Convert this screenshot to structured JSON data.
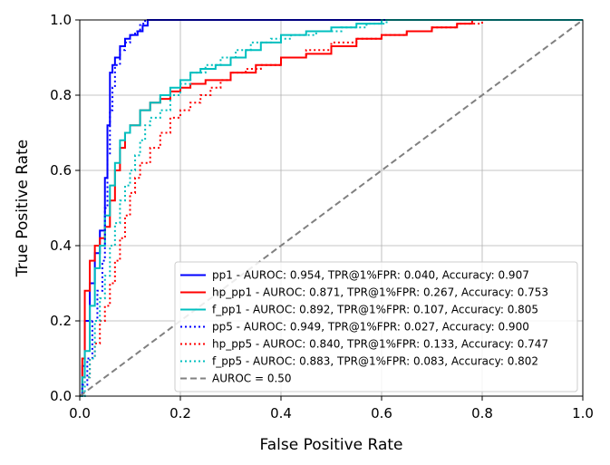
{
  "chart_data": {
    "type": "line",
    "title": "",
    "xlabel": "False Positive Rate",
    "ylabel": "True Positive Rate",
    "xlim": [
      0.0,
      1.0
    ],
    "ylim": [
      0.0,
      1.0
    ],
    "xticks": [
      "0.0",
      "0.2",
      "0.4",
      "0.6",
      "0.8",
      "1.0"
    ],
    "yticks": [
      "0.0",
      "0.2",
      "0.4",
      "0.6",
      "0.8",
      "1.0"
    ],
    "grid": true,
    "legend_position": "lower-right",
    "series": [
      {
        "name": "pp1 - AUROC: 0.954, TPR@1%FPR: 0.040, Accuracy: 0.907",
        "color": "#0000ff",
        "style": "solid",
        "x": [
          0.0,
          0.005,
          0.005,
          0.01,
          0.01,
          0.02,
          0.02,
          0.03,
          0.03,
          0.04,
          0.04,
          0.05,
          0.05,
          0.055,
          0.055,
          0.06,
          0.06,
          0.065,
          0.065,
          0.07,
          0.07,
          0.08,
          0.08,
          0.09,
          0.09,
          0.1,
          0.1,
          0.115,
          0.115,
          0.125,
          0.125,
          0.135,
          0.135,
          0.145,
          0.145,
          1.0
        ],
        "y": [
          0.0,
          0.0,
          0.08,
          0.08,
          0.2,
          0.2,
          0.3,
          0.3,
          0.38,
          0.38,
          0.44,
          0.44,
          0.58,
          0.58,
          0.72,
          0.72,
          0.86,
          0.86,
          0.88,
          0.88,
          0.9,
          0.9,
          0.93,
          0.93,
          0.95,
          0.95,
          0.96,
          0.96,
          0.97,
          0.97,
          0.985,
          0.985,
          1.0,
          1.0,
          1.0,
          1.0
        ]
      },
      {
        "name": "hp_pp1 - AUROC: 0.871, TPR@1%FPR: 0.267, Accuracy: 0.753",
        "color": "#ff0000",
        "style": "solid",
        "x": [
          0.0,
          0.005,
          0.005,
          0.01,
          0.01,
          0.02,
          0.02,
          0.03,
          0.03,
          0.04,
          0.04,
          0.05,
          0.05,
          0.06,
          0.06,
          0.07,
          0.07,
          0.08,
          0.08,
          0.09,
          0.09,
          0.1,
          0.1,
          0.12,
          0.12,
          0.14,
          0.14,
          0.16,
          0.16,
          0.18,
          0.18,
          0.2,
          0.2,
          0.22,
          0.22,
          0.25,
          0.25,
          0.3,
          0.3,
          0.35,
          0.35,
          0.4,
          0.4,
          0.45,
          0.45,
          0.5,
          0.5,
          0.55,
          0.55,
          0.6,
          0.6,
          0.65,
          0.65,
          0.7,
          0.7,
          0.75,
          0.75,
          0.78,
          0.78,
          0.79,
          0.79,
          1.0
        ],
        "y": [
          0.0,
          0.0,
          0.1,
          0.1,
          0.28,
          0.28,
          0.36,
          0.36,
          0.4,
          0.4,
          0.42,
          0.42,
          0.45,
          0.45,
          0.52,
          0.52,
          0.6,
          0.6,
          0.66,
          0.66,
          0.7,
          0.7,
          0.72,
          0.72,
          0.76,
          0.76,
          0.78,
          0.78,
          0.79,
          0.79,
          0.81,
          0.81,
          0.82,
          0.82,
          0.83,
          0.83,
          0.84,
          0.84,
          0.86,
          0.86,
          0.88,
          0.88,
          0.9,
          0.9,
          0.91,
          0.91,
          0.93,
          0.93,
          0.95,
          0.95,
          0.96,
          0.96,
          0.97,
          0.97,
          0.98,
          0.98,
          0.99,
          0.99,
          1.0,
          1.0,
          1.0,
          1.0
        ]
      },
      {
        "name": "f_pp1 - AUROC: 0.892, TPR@1%FPR: 0.107, Accuracy: 0.805",
        "color": "#00bfbf",
        "style": "solid",
        "x": [
          0.0,
          0.005,
          0.005,
          0.01,
          0.01,
          0.02,
          0.02,
          0.03,
          0.03,
          0.04,
          0.04,
          0.05,
          0.05,
          0.06,
          0.06,
          0.07,
          0.07,
          0.08,
          0.08,
          0.09,
          0.09,
          0.1,
          0.1,
          0.12,
          0.12,
          0.14,
          0.14,
          0.16,
          0.16,
          0.18,
          0.18,
          0.2,
          0.2,
          0.22,
          0.22,
          0.24,
          0.24,
          0.27,
          0.27,
          0.3,
          0.3,
          0.33,
          0.33,
          0.36,
          0.36,
          0.4,
          0.4,
          0.45,
          0.45,
          0.5,
          0.5,
          0.55,
          0.55,
          0.6,
          0.6,
          0.62,
          0.62,
          1.0
        ],
        "y": [
          0.0,
          0.0,
          0.05,
          0.05,
          0.12,
          0.12,
          0.24,
          0.24,
          0.34,
          0.34,
          0.4,
          0.4,
          0.48,
          0.48,
          0.56,
          0.56,
          0.62,
          0.62,
          0.68,
          0.68,
          0.7,
          0.7,
          0.72,
          0.72,
          0.76,
          0.76,
          0.78,
          0.78,
          0.8,
          0.8,
          0.82,
          0.82,
          0.84,
          0.84,
          0.86,
          0.86,
          0.87,
          0.87,
          0.88,
          0.88,
          0.9,
          0.9,
          0.92,
          0.92,
          0.94,
          0.94,
          0.96,
          0.96,
          0.97,
          0.97,
          0.98,
          0.98,
          0.99,
          0.99,
          1.0,
          1.0,
          1.0,
          1.0
        ]
      },
      {
        "name": "pp5 - AUROC: 0.949, TPR@1%FPR: 0.027, Accuracy: 0.900",
        "color": "#0000ff",
        "style": "dotted",
        "x": [
          0.0,
          0.005,
          0.005,
          0.015,
          0.015,
          0.025,
          0.025,
          0.035,
          0.035,
          0.045,
          0.045,
          0.05,
          0.05,
          0.055,
          0.055,
          0.06,
          0.06,
          0.065,
          0.065,
          0.07,
          0.07,
          0.08,
          0.08,
          0.09,
          0.09,
          0.1,
          0.1,
          0.11,
          0.11,
          0.12,
          0.12,
          0.13,
          0.13,
          1.0
        ],
        "y": [
          0.0,
          0.0,
          0.03,
          0.03,
          0.1,
          0.1,
          0.2,
          0.2,
          0.28,
          0.28,
          0.36,
          0.36,
          0.5,
          0.5,
          0.64,
          0.64,
          0.76,
          0.76,
          0.82,
          0.82,
          0.88,
          0.88,
          0.92,
          0.92,
          0.94,
          0.94,
          0.96,
          0.96,
          0.97,
          0.97,
          0.99,
          0.99,
          1.0,
          1.0
        ]
      },
      {
        "name": "hp_pp5 - AUROC: 0.840, TPR@1%FPR: 0.133, Accuracy: 0.747",
        "color": "#ff0000",
        "style": "dotted",
        "x": [
          0.0,
          0.01,
          0.01,
          0.02,
          0.02,
          0.03,
          0.03,
          0.04,
          0.04,
          0.05,
          0.05,
          0.06,
          0.06,
          0.07,
          0.07,
          0.08,
          0.08,
          0.09,
          0.09,
          0.1,
          0.1,
          0.11,
          0.11,
          0.12,
          0.12,
          0.14,
          0.14,
          0.16,
          0.16,
          0.18,
          0.18,
          0.2,
          0.2,
          0.22,
          0.22,
          0.24,
          0.24,
          0.26,
          0.26,
          0.28,
          0.28,
          0.3,
          0.3,
          0.33,
          0.33,
          0.36,
          0.36,
          0.4,
          0.4,
          0.45,
          0.45,
          0.5,
          0.5,
          0.55,
          0.55,
          0.6,
          0.6,
          0.65,
          0.65,
          0.7,
          0.7,
          0.75,
          0.75,
          0.8,
          0.8,
          1.0
        ],
        "y": [
          0.0,
          0.0,
          0.05,
          0.05,
          0.1,
          0.1,
          0.14,
          0.14,
          0.2,
          0.2,
          0.24,
          0.24,
          0.3,
          0.3,
          0.36,
          0.36,
          0.42,
          0.42,
          0.48,
          0.48,
          0.54,
          0.54,
          0.58,
          0.58,
          0.62,
          0.62,
          0.66,
          0.66,
          0.7,
          0.7,
          0.74,
          0.74,
          0.76,
          0.76,
          0.78,
          0.78,
          0.8,
          0.8,
          0.82,
          0.82,
          0.84,
          0.84,
          0.86,
          0.86,
          0.87,
          0.87,
          0.88,
          0.88,
          0.9,
          0.9,
          0.92,
          0.92,
          0.94,
          0.94,
          0.95,
          0.95,
          0.96,
          0.96,
          0.97,
          0.97,
          0.98,
          0.98,
          0.99,
          0.99,
          1.0,
          1.0
        ]
      },
      {
        "name": "f_pp5 - AUROC: 0.883, TPR@1%FPR: 0.083, Accuracy: 0.802",
        "color": "#00bfbf",
        "style": "dotted",
        "x": [
          0.0,
          0.01,
          0.01,
          0.02,
          0.02,
          0.03,
          0.03,
          0.04,
          0.04,
          0.05,
          0.05,
          0.06,
          0.06,
          0.07,
          0.07,
          0.08,
          0.08,
          0.09,
          0.09,
          0.1,
          0.1,
          0.11,
          0.11,
          0.12,
          0.12,
          0.13,
          0.13,
          0.14,
          0.14,
          0.16,
          0.16,
          0.18,
          0.18,
          0.2,
          0.2,
          0.22,
          0.22,
          0.25,
          0.25,
          0.28,
          0.28,
          0.31,
          0.31,
          0.34,
          0.34,
          0.38,
          0.38,
          0.42,
          0.42,
          0.47,
          0.47,
          0.52,
          0.52,
          0.57,
          0.57,
          0.61,
          0.61,
          0.62,
          0.62,
          1.0
        ],
        "y": [
          0.0,
          0.0,
          0.05,
          0.05,
          0.1,
          0.1,
          0.2,
          0.2,
          0.26,
          0.26,
          0.32,
          0.32,
          0.4,
          0.4,
          0.46,
          0.46,
          0.52,
          0.52,
          0.56,
          0.56,
          0.6,
          0.6,
          0.64,
          0.64,
          0.68,
          0.68,
          0.72,
          0.72,
          0.74,
          0.74,
          0.76,
          0.76,
          0.8,
          0.8,
          0.83,
          0.83,
          0.86,
          0.86,
          0.88,
          0.88,
          0.9,
          0.9,
          0.92,
          0.92,
          0.94,
          0.94,
          0.95,
          0.95,
          0.96,
          0.96,
          0.97,
          0.97,
          0.98,
          0.98,
          0.99,
          0.99,
          1.0,
          1.0,
          1.0,
          1.0
        ]
      },
      {
        "name": "AUROC = 0.50",
        "color": "#808080",
        "style": "dashed",
        "x": [
          0.0,
          1.0
        ],
        "y": [
          0.0,
          1.0
        ]
      }
    ]
  }
}
